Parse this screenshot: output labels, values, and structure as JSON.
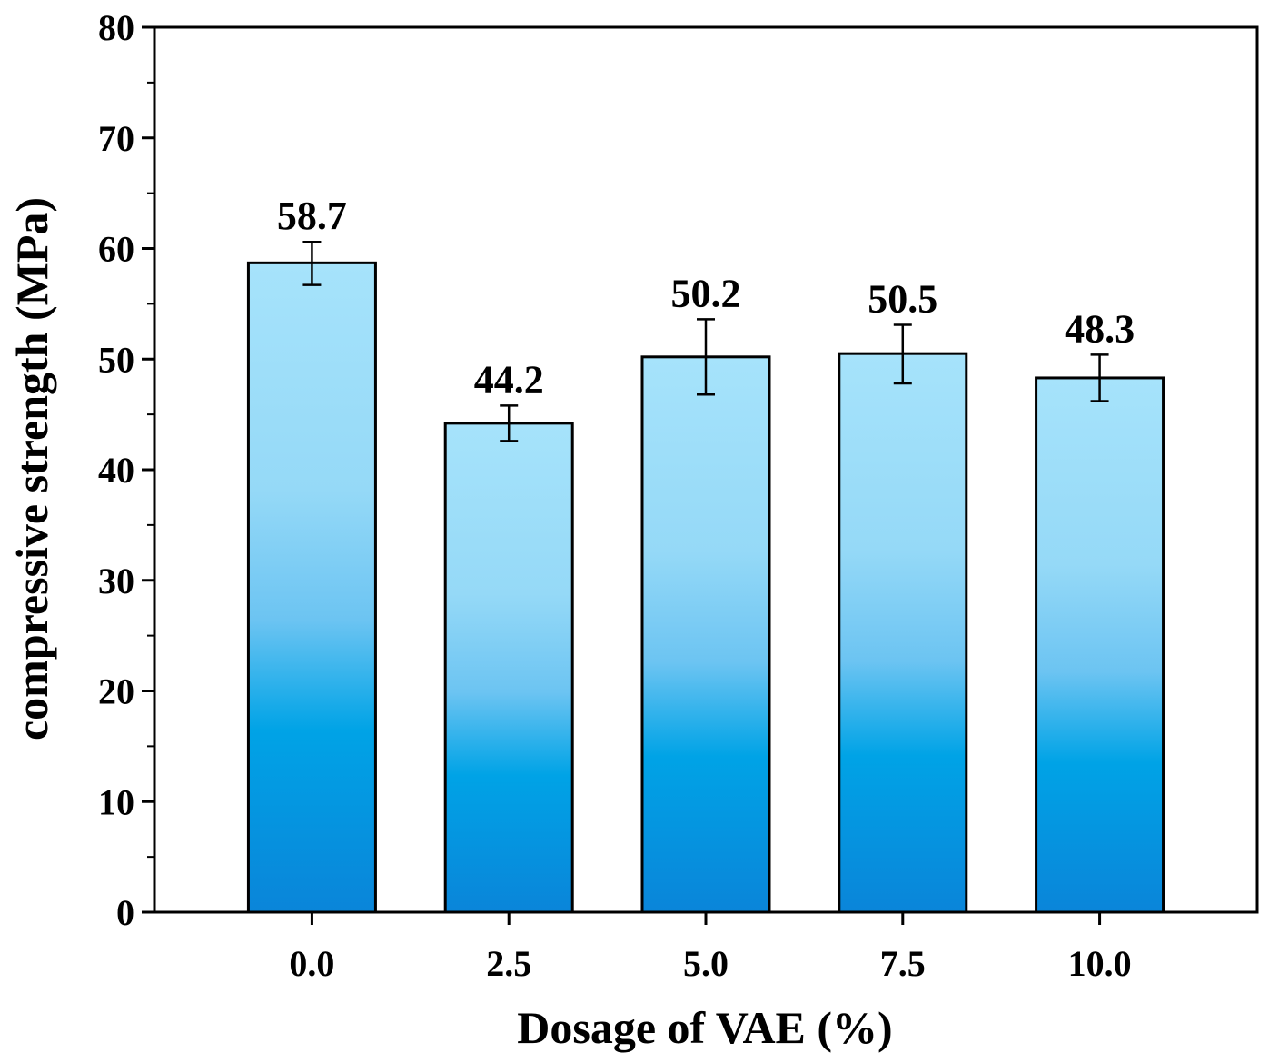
{
  "chart_data": {
    "type": "bar",
    "categories": [
      "0.0",
      "2.5",
      "5.0",
      "7.5",
      "10.0"
    ],
    "values": [
      58.7,
      44.2,
      50.2,
      50.5,
      48.3
    ],
    "value_labels": [
      "58.7",
      "44.2",
      "50.2",
      "50.5",
      "48.3"
    ],
    "error_bars": [
      {
        "low": 56.7,
        "high": 60.6
      },
      {
        "low": 42.6,
        "high": 45.8
      },
      {
        "low": 46.8,
        "high": 53.6
      },
      {
        "low": 47.8,
        "high": 53.1
      },
      {
        "low": 46.2,
        "high": 50.4
      }
    ],
    "title": "",
    "xlabel": "Dosage of VAE (%)",
    "ylabel": "compressive strength (MPa)",
    "ylim": [
      0,
      80
    ],
    "yticks": [
      0,
      10,
      20,
      30,
      40,
      50,
      60,
      70,
      80
    ],
    "ytick_labels": [
      "0",
      "10",
      "20",
      "30",
      "40",
      "50",
      "60",
      "70",
      "80"
    ],
    "grid": false,
    "legend": "none",
    "colors": {
      "bar_top": "#a6e3fb",
      "bar_mid": "#00a3e6",
      "bar_bottom": "#0a85d9",
      "bar_outline": "#000000",
      "axis": "#000000"
    }
  }
}
